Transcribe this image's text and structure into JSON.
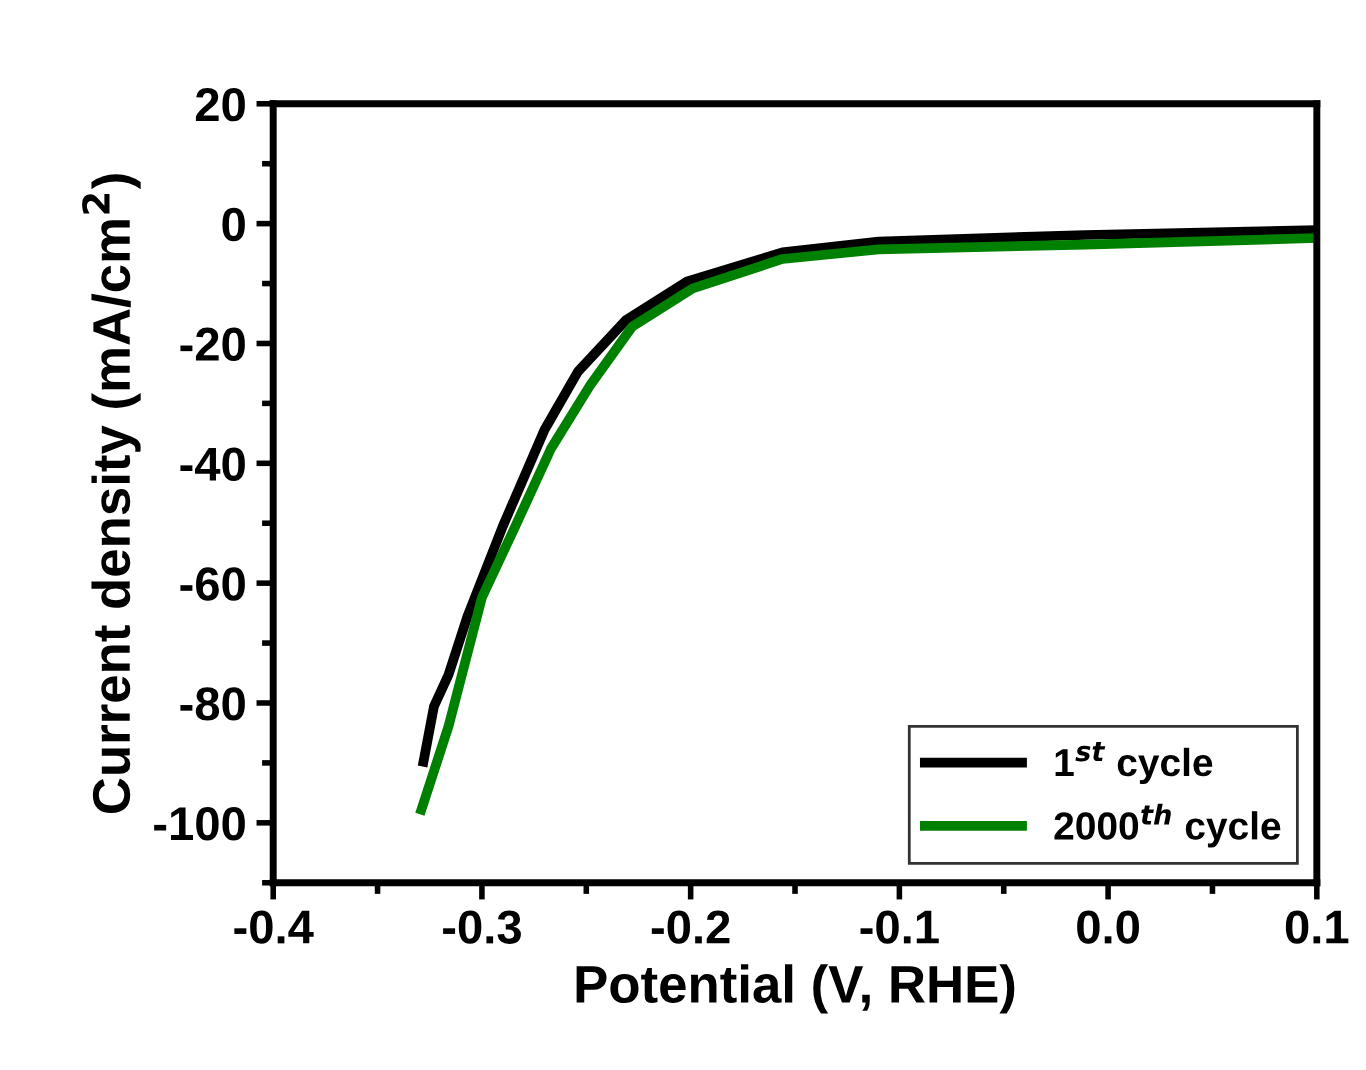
{
  "chart_data": {
    "type": "line",
    "xlabel": "Potential (V, RHE)",
    "ylabel": "Current density (mA/cm$^{2}$)",
    "xlim": [
      -0.4,
      0.1
    ],
    "ylim": [
      -110,
      20
    ],
    "xticks": [
      -0.4,
      {
        "value": -0.35,
        "label": null
      },
      -0.3,
      {
        "value": -0.25,
        "label": null
      },
      -0.2,
      {
        "value": -0.15,
        "label": null
      },
      -0.1,
      {
        "value": -0.05,
        "label": null
      },
      {
        "value": 0,
        "label": "0.0"
      },
      {
        "value": 0.05,
        "label": null
      },
      0.1
    ],
    "yticks": [
      {
        "value": -110,
        "label": null
      },
      -100,
      {
        "value": -90,
        "label": null
      },
      -80,
      {
        "value": -70,
        "label": null
      },
      -60,
      {
        "value": -50,
        "label": null
      },
      -40,
      {
        "value": -30,
        "label": null
      },
      -20,
      {
        "value": -10,
        "label": null
      },
      0,
      {
        "value": 10,
        "label": null
      },
      20
    ],
    "grid": false,
    "legend": "bottom right",
    "line_style": "solid",
    "marker": "none",
    "series": [
      {
        "name": "1$^{st}$ cycle",
        "color": "#000000",
        "x": [
          -0.328,
          -0.323,
          -0.316,
          -0.307,
          -0.29,
          -0.27,
          -0.254,
          -0.231,
          -0.202,
          -0.156,
          -0.11,
          -0.011,
          0.1
        ],
        "values": [
          -89.8,
          -80.6,
          -75.3,
          -65.6,
          -50.5,
          -34.4,
          -24.7,
          -16.1,
          -9.7,
          -4.8,
          -3.0,
          -1.9,
          -1.1
        ]
      },
      {
        "name": "2000$^{th}$ cycle",
        "color": "#008000",
        "x": [
          -0.329,
          -0.316,
          -0.3,
          -0.284,
          -0.267,
          -0.248,
          -0.228,
          -0.199,
          -0.156,
          -0.11,
          -0.011,
          0.1
        ],
        "values": [
          -97.8,
          -83.9,
          -62.4,
          -50.5,
          -37.6,
          -26.9,
          -17.2,
          -10.8,
          -5.9,
          -4.3,
          -3.5,
          -2.4
        ]
      }
    ]
  }
}
